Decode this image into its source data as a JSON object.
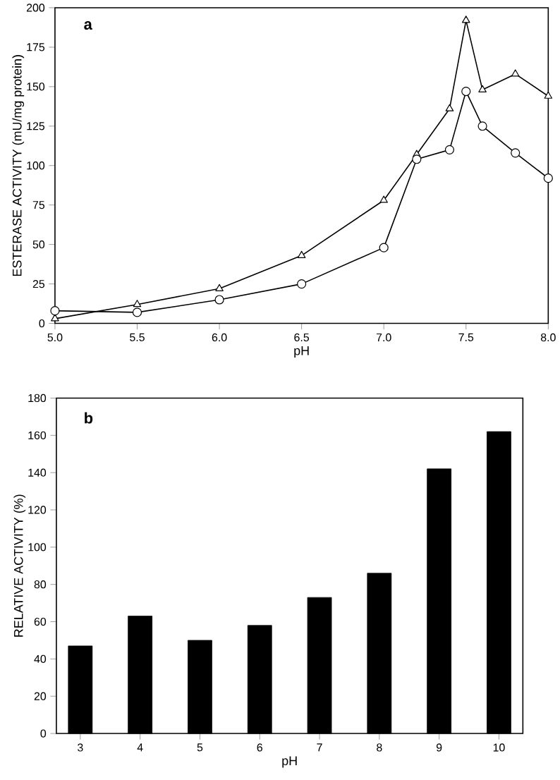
{
  "chart_data": [
    {
      "type": "line",
      "xlabel": "pH",
      "ylabel": "ESTERASE ACTIVITY (mU/mg protein)",
      "annotations": [
        "a"
      ],
      "x": [
        5.0,
        5.5,
        6.0,
        6.5,
        7.0,
        7.2,
        7.4,
        7.5,
        7.6,
        7.8,
        8.0
      ],
      "series": [
        {
          "color": "#000000",
          "marker": "triangle",
          "values": [
            3,
            12,
            22,
            43,
            78,
            107,
            136,
            192,
            148,
            158,
            144
          ]
        },
        {
          "color": "#000000",
          "marker": "circle",
          "values": [
            8,
            7,
            15,
            25,
            48,
            104,
            110,
            147,
            125,
            108,
            92
          ]
        }
      ],
      "xlim": [
        5.0,
        8.0
      ],
      "xticks": [
        {
          "value": 5.0,
          "label": "5.0"
        },
        {
          "value": 5.5,
          "label": "5.5"
        },
        {
          "value": 6.0,
          "label": "6.0"
        },
        {
          "value": 6.5,
          "label": "6.5"
        },
        {
          "value": 7.0,
          "label": "7.0"
        },
        {
          "value": 7.5,
          "label": "7.5"
        },
        {
          "value": 8.0,
          "label": "8.0"
        }
      ],
      "ylim": [
        0,
        200
      ],
      "yticks": [
        0,
        25,
        50,
        75,
        100,
        125,
        150,
        175,
        200
      ],
      "line_style": "solid"
    },
    {
      "type": "bar",
      "xlabel": "pH",
      "ylabel": "RELATIVE ACTIVITY (%)",
      "annotations": [
        "b"
      ],
      "categories": [
        "3",
        "4",
        "5",
        "6",
        "7",
        "8",
        "9",
        "10"
      ],
      "values": [
        47,
        63,
        50,
        58,
        73,
        86,
        142,
        162
      ],
      "color": "#000000",
      "ylim": [
        0,
        180
      ],
      "yticks": [
        0,
        20,
        40,
        60,
        80,
        100,
        120,
        140,
        160,
        180
      ]
    }
  ]
}
